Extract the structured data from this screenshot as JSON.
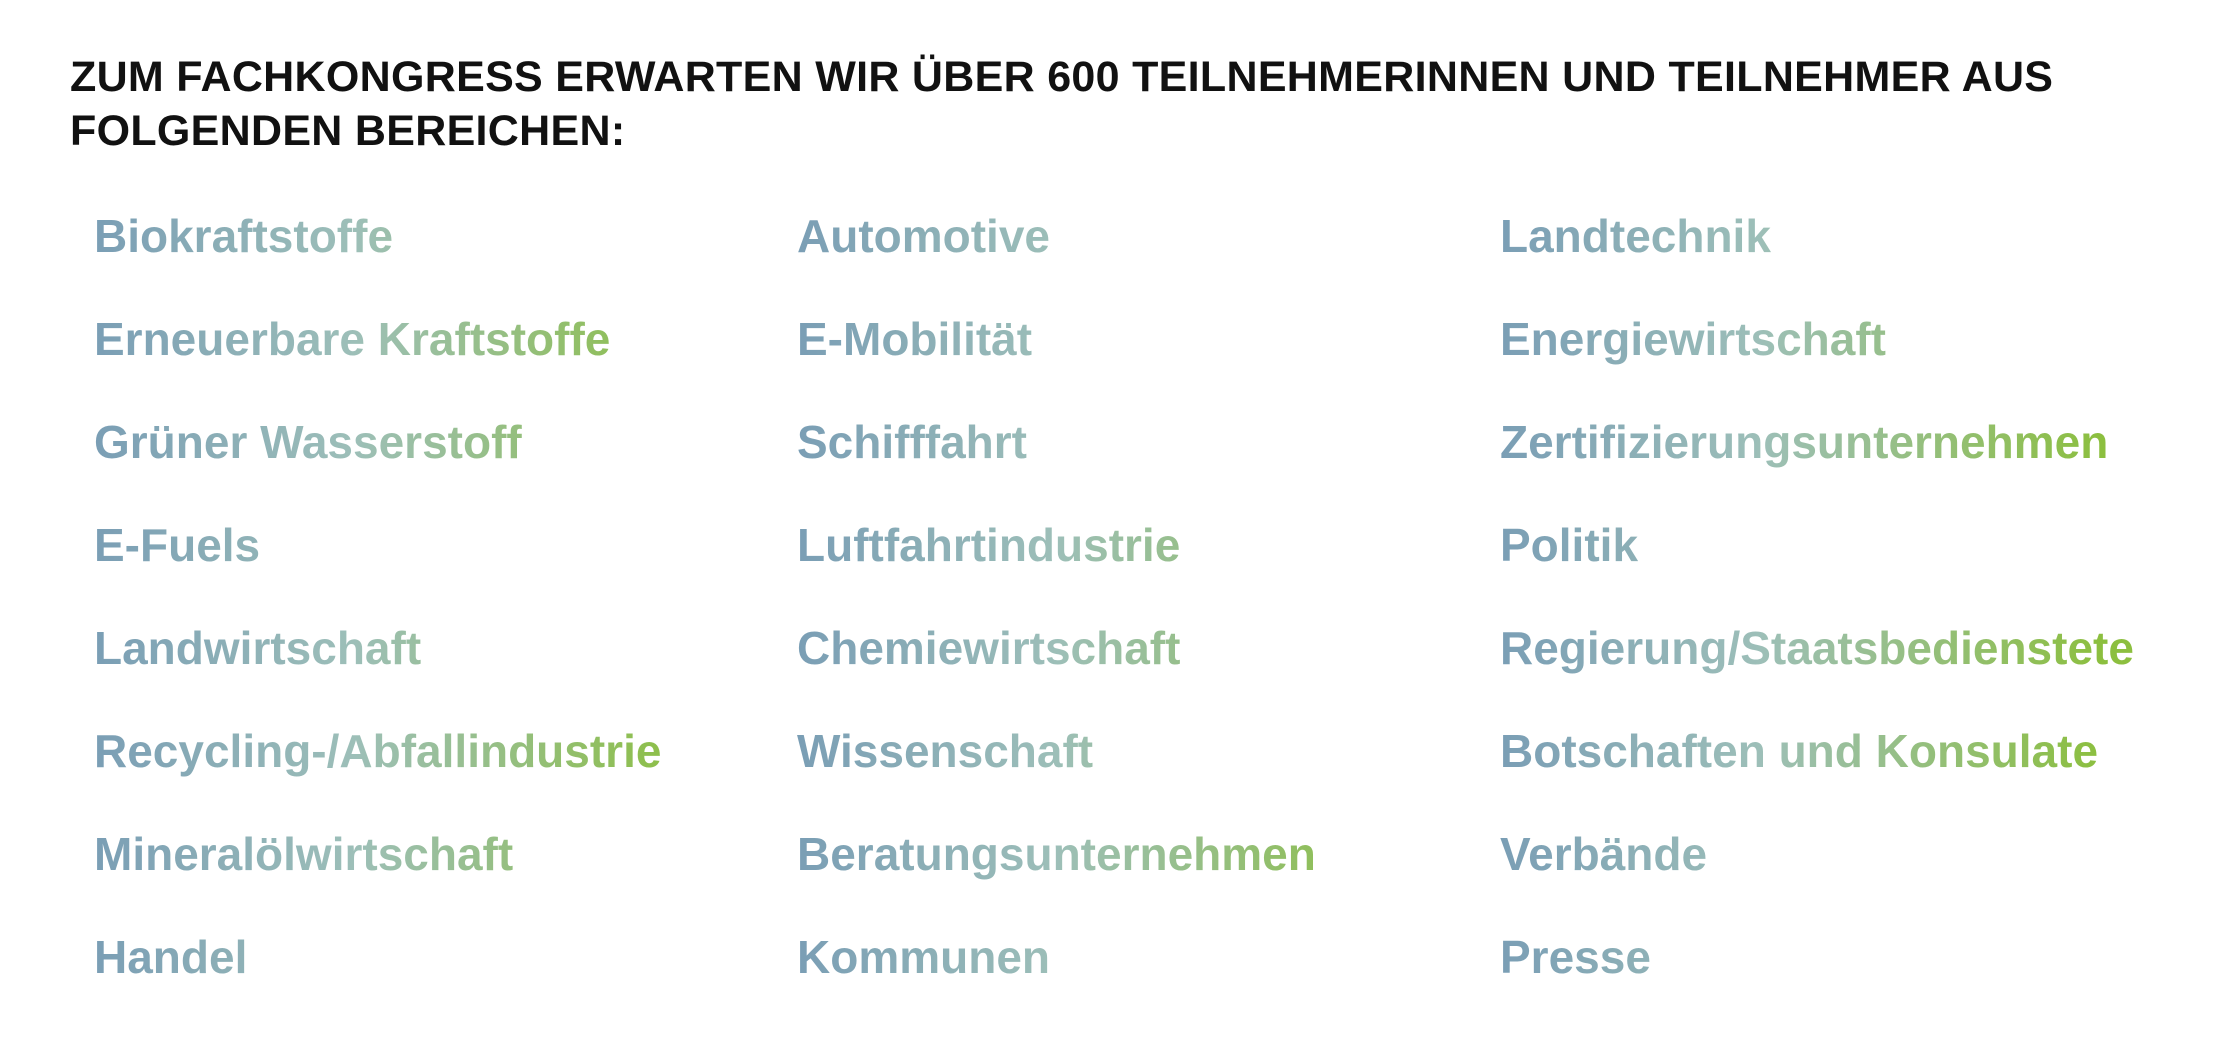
{
  "heading": {
    "line1": "ZUM FACHKONGRESS ERWARTEN WIR ÜBER 600 TEILNEHMERINNEN UND TEILNEHMER AUS",
    "line2": "FOLGENDEN BEREICHEN:"
  },
  "colors": {
    "heading": "#111111",
    "gradient_start": "#7a9eb5",
    "gradient_mid": "#9dbfb8",
    "gradient_end": "#8cbf3f"
  },
  "columns": [
    {
      "items": [
        "Biokraftstoffe",
        "Erneuerbare Kraftstoffe",
        "Grüner Wasserstoff",
        "E-Fuels",
        "Landwirtschaft",
        "Recycling-/Abfallindustrie",
        "Mineralölwirtschaft",
        "Handel"
      ]
    },
    {
      "items": [
        "Automotive",
        "E-Mobilität",
        "Schifffahrt",
        "Luftfahrtindustrie",
        "Chemiewirtschaft",
        "Wissenschaft",
        "Beratungsunternehmen",
        "Kommunen"
      ]
    },
    {
      "items": [
        "Landtechnik",
        "Energiewirtschaft",
        "Zertifizierungsunternehmen",
        "Politik",
        "Regierung/Staatsbedienstete",
        "Botschaften und Konsulate",
        "Verbände",
        "Presse"
      ]
    }
  ]
}
